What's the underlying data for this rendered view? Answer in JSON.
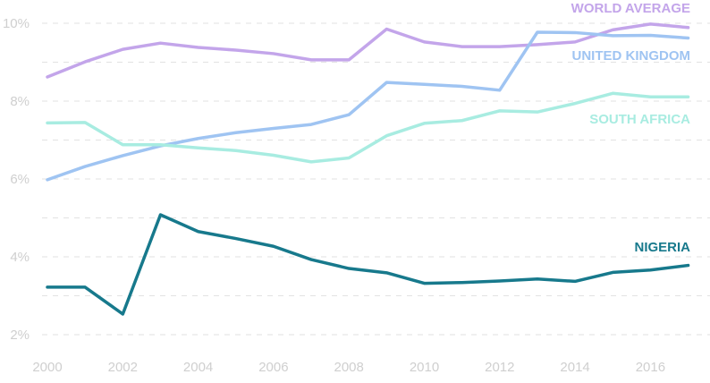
{
  "chart_data": {
    "type": "line",
    "title": "",
    "xlabel": "",
    "ylabel": "",
    "x": [
      2000,
      2001,
      2002,
      2003,
      2004,
      2005,
      2006,
      2007,
      2008,
      2009,
      2010,
      2011,
      2012,
      2013,
      2014,
      2015,
      2016,
      2017
    ],
    "xlim": [
      2000,
      2017
    ],
    "ylim": [
      1.5,
      10.2
    ],
    "x_ticks": [
      "2000",
      "2002",
      "2004",
      "2006",
      "2008",
      "2010",
      "2012",
      "2014",
      "2016"
    ],
    "x_tick_values": [
      2000,
      2002,
      2004,
      2006,
      2008,
      2010,
      2012,
      2014,
      2016
    ],
    "y_ticks": [
      "2%",
      "4%",
      "6%",
      "8%",
      "10%"
    ],
    "y_tick_values": [
      2,
      4,
      6,
      8,
      10
    ],
    "gridlines": [
      2,
      3,
      4,
      5,
      6,
      7,
      8,
      9,
      10
    ],
    "grid": true,
    "grid_style": "dashed horizontal",
    "legend": "direct labels at right end of lines",
    "series": [
      {
        "name": "WORLD AVERAGE",
        "color": "#c3a5ea",
        "values": [
          8.62,
          9.01,
          9.33,
          9.49,
          9.38,
          9.31,
          9.22,
          9.06,
          9.06,
          9.85,
          9.52,
          9.4,
          9.4,
          9.45,
          9.52,
          9.83,
          9.98,
          9.89
        ]
      },
      {
        "name": "UNITED KINGDOM",
        "color": "#9fc4f2",
        "values": [
          5.98,
          6.32,
          6.6,
          6.85,
          7.04,
          7.19,
          7.3,
          7.4,
          7.65,
          8.48,
          8.43,
          8.38,
          8.28,
          9.77,
          9.76,
          9.68,
          9.69,
          9.62
        ]
      },
      {
        "name": "SOUTH AFRICA",
        "color": "#a8ece1",
        "values": [
          7.44,
          7.45,
          6.88,
          6.88,
          6.8,
          6.73,
          6.61,
          6.44,
          6.54,
          7.11,
          7.43,
          7.5,
          7.75,
          7.72,
          7.94,
          8.2,
          8.11,
          8.11
        ]
      },
      {
        "name": "NIGERIA",
        "color": "#17798c",
        "values": [
          3.22,
          3.22,
          2.53,
          5.08,
          4.65,
          4.47,
          4.27,
          3.93,
          3.7,
          3.59,
          3.32,
          3.34,
          3.38,
          3.43,
          3.37,
          3.6,
          3.66,
          3.78
        ]
      }
    ]
  }
}
